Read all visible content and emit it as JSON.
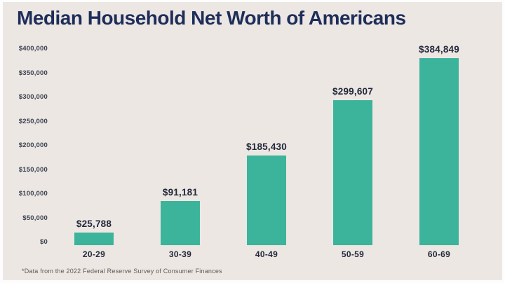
{
  "title": "Median Household Net Worth of Americans",
  "footnote": "*Data from the 2022 Federal Reserve Survey of Consumer Finances",
  "colors": {
    "background": "#ece7e3",
    "frame": "#fdfdfd",
    "bar": "#3cb49b",
    "title_text": "#1e2d5a",
    "label_text": "#23283a",
    "axis_text": "#3b4050",
    "footnote_text": "#5f5a57"
  },
  "chart_data": {
    "type": "bar",
    "title": "Median Household Net Worth of Americans",
    "categories": [
      "20-29",
      "30-39",
      "40-49",
      "50-59",
      "60-69"
    ],
    "values": [
      25788,
      91181,
      185430,
      299607,
      384849
    ],
    "value_labels": [
      "$25,788",
      "$91,181",
      "$185,430",
      "$299,607",
      "$384,849"
    ],
    "xlabel": "",
    "ylabel": "",
    "ylim": [
      0,
      400000
    ],
    "ytick_interval": 50000,
    "ytick_labels_top_to_bottom": [
      "$400,000",
      "$350,000",
      "$300,000",
      "$250,000",
      "$200,000",
      "$150,000",
      "$100,000",
      "$50,000",
      "$0"
    ],
    "grid": false,
    "legend": false,
    "bar_color": "#3cb49b",
    "annotation": "*Data from the 2022 Federal Reserve Survey of Consumer Finances"
  }
}
